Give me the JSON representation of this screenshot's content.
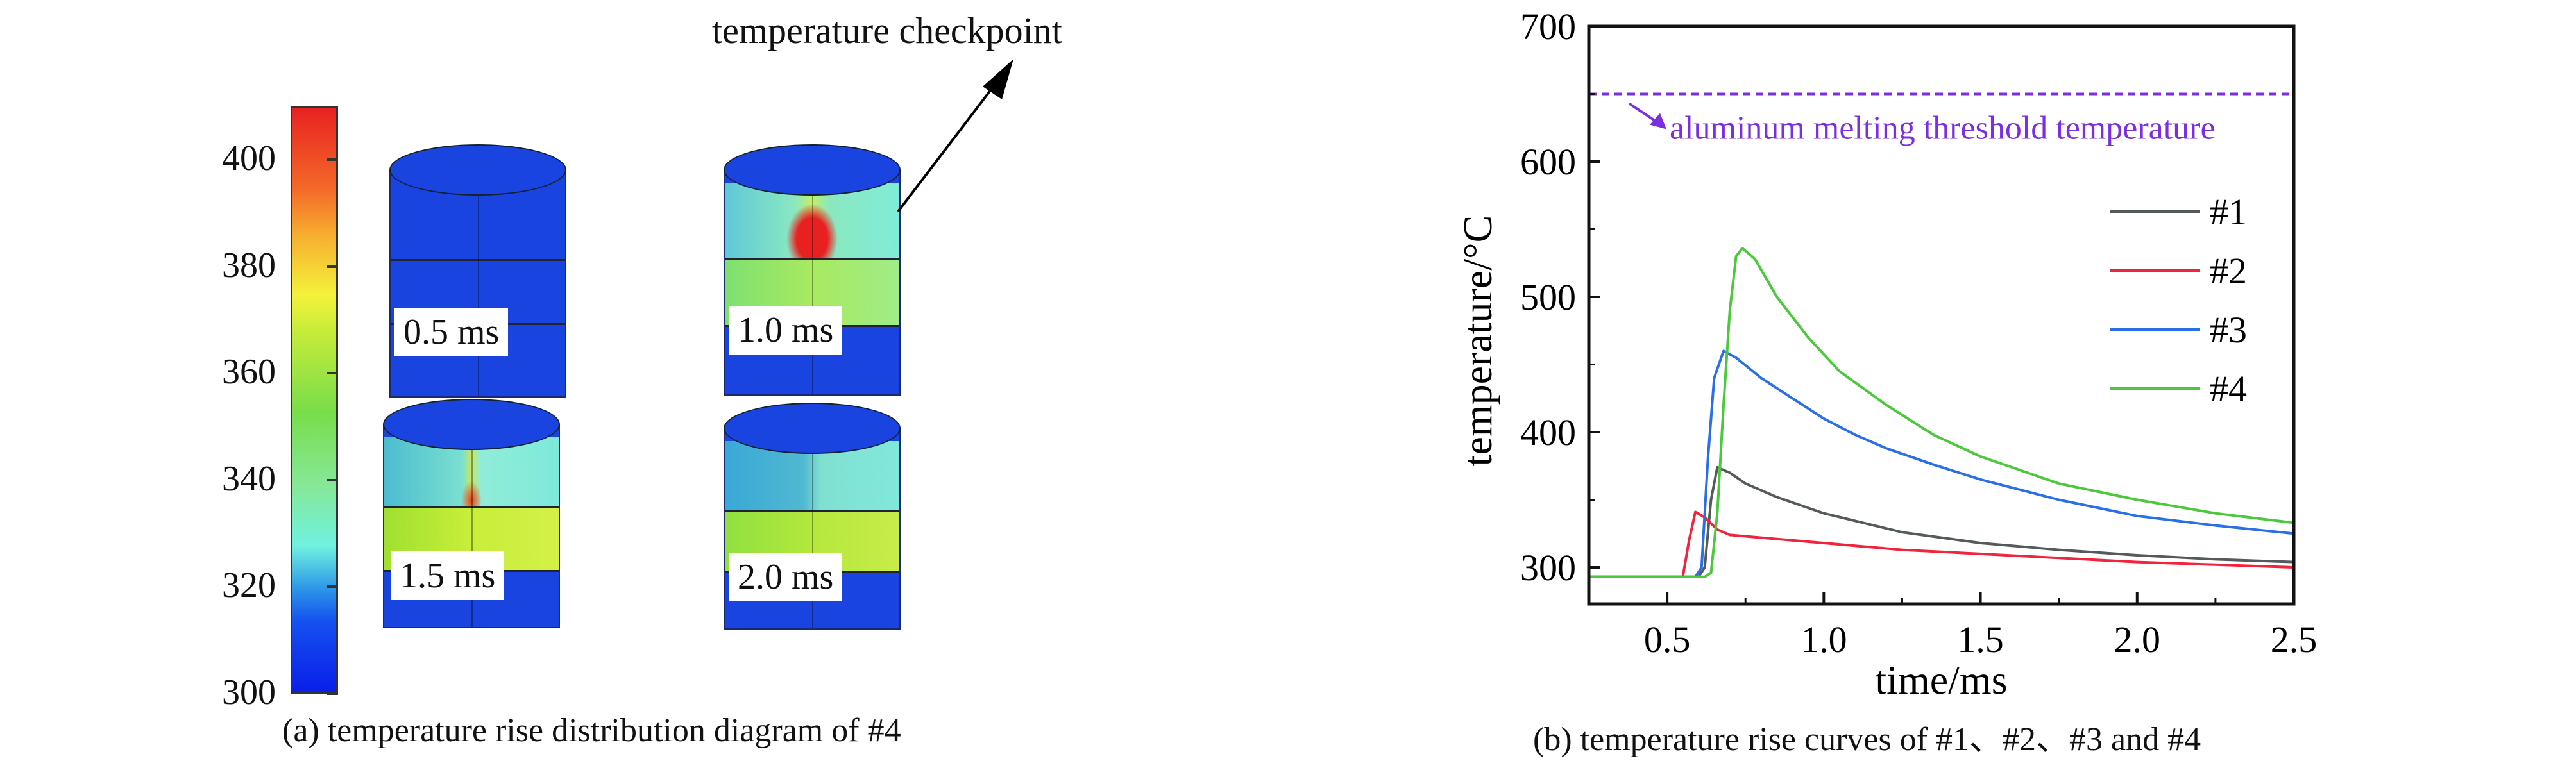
{
  "panel_a": {
    "caption": "(a) temperature rise distribution diagram of #4",
    "annotation": "temperature checkpoint",
    "colorbar_ticks": [
      "400",
      "380",
      "360",
      "340",
      "320",
      "300"
    ],
    "colorbar_range": [
      300,
      410
    ],
    "snapshots": [
      {
        "label": "0.5 ms"
      },
      {
        "label": "1.0 ms"
      },
      {
        "label": "1.5 ms"
      },
      {
        "label": "2.0 ms"
      }
    ]
  },
  "panel_b": {
    "caption": "(b) temperature rise curves of #1、#2、#3 and #4"
  },
  "chart_data": {
    "type": "line",
    "xlabel": "time/ms",
    "ylabel": "temperature/°C",
    "xlim": [
      0.25,
      2.5
    ],
    "ylim": [
      273,
      700
    ],
    "xticks": [
      "0.5",
      "1.0",
      "1.5",
      "2.0",
      "2.5"
    ],
    "yticks": [
      "300",
      "400",
      "500",
      "600",
      "700"
    ],
    "legend_position": "top-right",
    "threshold": {
      "value": 650,
      "label": "aluminum melting threshold temperature",
      "color": "#7b2fe0"
    },
    "series": [
      {
        "name": "#1",
        "color": "#555a5a",
        "x": [
          0.25,
          0.6,
          0.62,
          0.64,
          0.66,
          0.7,
          0.75,
          0.85,
          1.0,
          1.25,
          1.5,
          1.75,
          2.0,
          2.25,
          2.5
        ],
        "y": [
          293,
          293,
          300,
          350,
          374,
          370,
          362,
          352,
          340,
          326,
          318,
          313,
          309,
          306,
          304
        ]
      },
      {
        "name": "#2",
        "color": "#f0243c",
        "x": [
          0.25,
          0.55,
          0.57,
          0.59,
          0.62,
          0.66,
          0.7,
          0.8,
          1.0,
          1.25,
          1.5,
          1.75,
          2.0,
          2.25,
          2.5
        ],
        "y": [
          293,
          293,
          320,
          341,
          337,
          328,
          324,
          322,
          318,
          313,
          310,
          307,
          304,
          302,
          300
        ]
      },
      {
        "name": "#3",
        "color": "#2a6fe8",
        "x": [
          0.25,
          0.59,
          0.61,
          0.63,
          0.65,
          0.68,
          0.72,
          0.8,
          0.9,
          1.0,
          1.1,
          1.2,
          1.35,
          1.5,
          1.75,
          2.0,
          2.25,
          2.5
        ],
        "y": [
          293,
          293,
          300,
          380,
          440,
          460,
          455,
          440,
          425,
          410,
          398,
          388,
          376,
          365,
          350,
          338,
          331,
          325
        ]
      },
      {
        "name": "#4",
        "color": "#4cc83c",
        "x": [
          0.25,
          0.62,
          0.64,
          0.66,
          0.68,
          0.7,
          0.72,
          0.74,
          0.78,
          0.85,
          0.95,
          1.05,
          1.2,
          1.35,
          1.5,
          1.75,
          2.0,
          2.25,
          2.5
        ],
        "y": [
          293,
          293,
          296,
          340,
          420,
          490,
          530,
          536,
          528,
          500,
          470,
          445,
          420,
          398,
          382,
          362,
          350,
          340,
          333
        ]
      }
    ]
  }
}
